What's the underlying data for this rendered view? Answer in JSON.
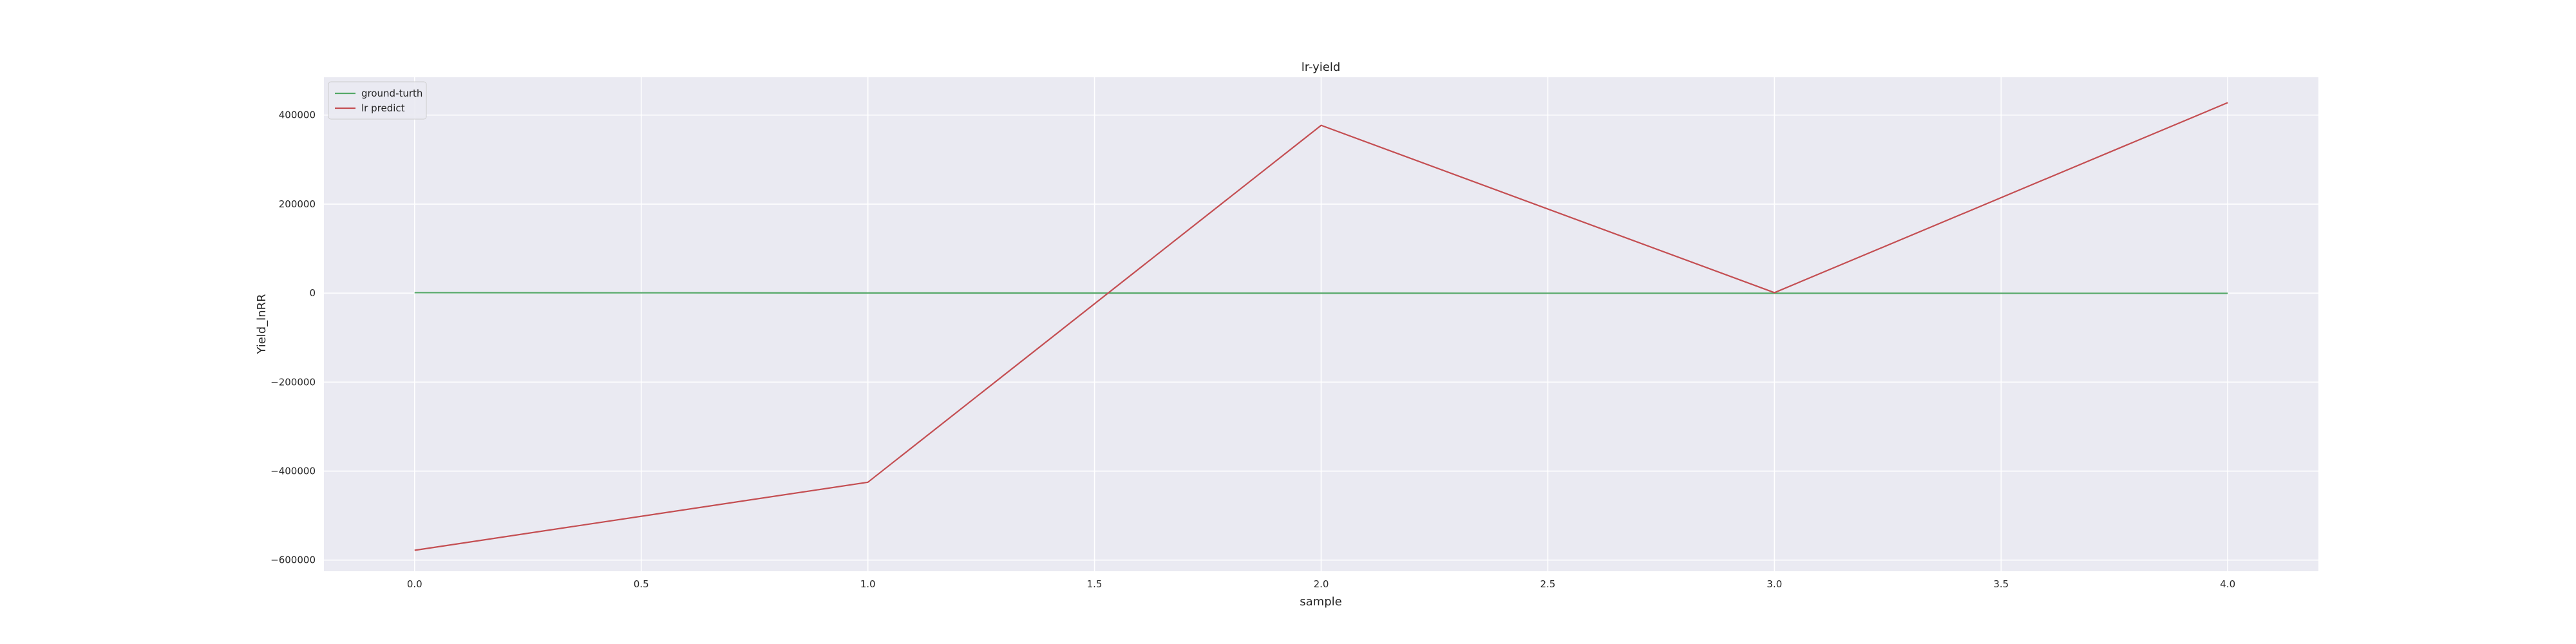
{
  "chart_data": {
    "type": "line",
    "title": "lr-yield",
    "xlabel": "sample",
    "ylabel": "Yield_lnRR",
    "x": [
      0,
      1,
      2,
      3,
      4
    ],
    "xlim": [
      -0.2,
      4.2
    ],
    "ylim": [
      -625000,
      485000
    ],
    "xticks": [
      0.0,
      0.5,
      1.0,
      1.5,
      2.0,
      2.5,
      3.0,
      3.5,
      4.0
    ],
    "xtick_labels": [
      "0.0",
      "0.5",
      "1.0",
      "1.5",
      "2.0",
      "2.5",
      "3.0",
      "3.5",
      "4.0"
    ],
    "yticks": [
      -600000,
      -400000,
      -200000,
      0,
      200000,
      400000
    ],
    "ytick_labels": [
      "−600000",
      "−400000",
      "−200000",
      "0",
      "200000",
      "400000"
    ],
    "grid": true,
    "legend_position": "top-left",
    "background_color": "#eaeaf2",
    "grid_color": "#ffffff",
    "series": [
      {
        "name": "ground-turth",
        "color": "#55a868",
        "values": [
          1000,
          300,
          -200,
          -300,
          -500
        ]
      },
      {
        "name": "lr predict",
        "color": "#c44e52",
        "values": [
          -578000,
          -425000,
          377000,
          1000,
          428000
        ]
      }
    ]
  }
}
